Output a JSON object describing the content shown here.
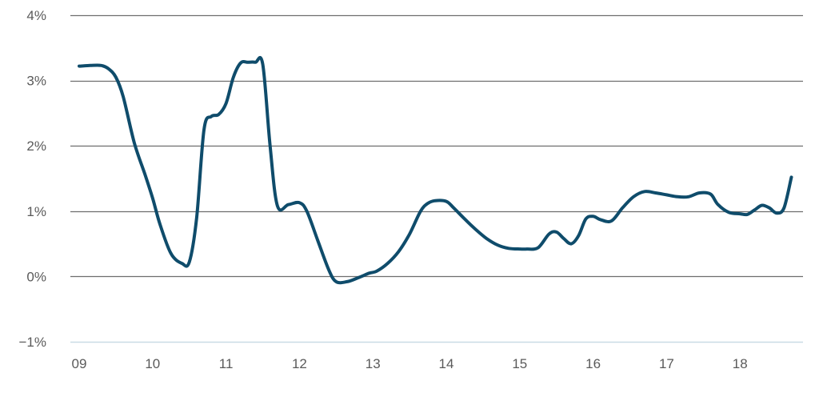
{
  "chart_data": {
    "type": "line",
    "title": "",
    "xlabel": "",
    "ylabel": "",
    "x_ticks": [
      {
        "x": 2009,
        "label": "09"
      },
      {
        "x": 2010,
        "label": "10"
      },
      {
        "x": 2011,
        "label": "11"
      },
      {
        "x": 2012,
        "label": "12"
      },
      {
        "x": 2013,
        "label": "13"
      },
      {
        "x": 2014,
        "label": "14"
      },
      {
        "x": 2015,
        "label": "15"
      },
      {
        "x": 2016,
        "label": "16"
      },
      {
        "x": 2017,
        "label": "17"
      },
      {
        "x": 2018,
        "label": "18"
      }
    ],
    "y_ticks": [
      {
        "y": 4,
        "label": "4%"
      },
      {
        "y": 3,
        "label": "3%"
      },
      {
        "y": 2,
        "label": "2%"
      },
      {
        "y": 1,
        "label": "1%"
      },
      {
        "y": 0,
        "label": "0%"
      },
      {
        "y": -1,
        "label": "−1%"
      }
    ],
    "xlim": [
      2009,
      2019
    ],
    "ylim": [
      -1,
      4
    ],
    "grid": true,
    "colors": {
      "line": "#0f4c6b",
      "grid": "#6e6e6e",
      "zero_axis_bottom": "#c9dbe6"
    },
    "series": [
      {
        "x": [
          2009.0,
          2009.15,
          2009.3,
          2009.4,
          2009.5,
          2009.6,
          2009.75,
          2009.9,
          2010.0,
          2010.1,
          2010.25,
          2010.4,
          2010.5,
          2010.6,
          2010.7,
          2010.8,
          2010.9,
          2011.0,
          2011.1,
          2011.2,
          2011.3,
          2011.4,
          2011.5,
          2011.6,
          2011.7,
          2011.85,
          2012.0,
          2012.1,
          2012.25,
          2012.4,
          2012.5,
          2012.65,
          2012.8,
          2012.95,
          2013.05,
          2013.2,
          2013.35,
          2013.5,
          2013.65,
          2013.75,
          2013.85,
          2014.0,
          2014.1,
          2014.25,
          2014.4,
          2014.55,
          2014.7,
          2014.85,
          2015.0,
          2015.1,
          2015.25,
          2015.4,
          2015.5,
          2015.6,
          2015.7,
          2015.8,
          2015.9,
          2016.0,
          2016.1,
          2016.25,
          2016.4,
          2016.55,
          2016.7,
          2016.85,
          2017.0,
          2017.15,
          2017.3,
          2017.45,
          2017.6,
          2017.7,
          2017.85,
          2018.0,
          2018.1,
          2018.2,
          2018.3,
          2018.4,
          2018.5,
          2018.6,
          2018.7
        ],
        "y": [
          3.22,
          3.23,
          3.23,
          3.18,
          3.05,
          2.75,
          2.05,
          1.55,
          1.2,
          0.8,
          0.35,
          0.2,
          0.22,
          0.9,
          2.25,
          2.45,
          2.48,
          2.65,
          3.05,
          3.27,
          3.28,
          3.28,
          3.25,
          2.0,
          1.08,
          1.1,
          1.13,
          1.0,
          0.55,
          0.1,
          -0.08,
          -0.08,
          -0.02,
          0.05,
          0.08,
          0.2,
          0.38,
          0.65,
          1.0,
          1.12,
          1.16,
          1.15,
          1.05,
          0.88,
          0.72,
          0.58,
          0.48,
          0.43,
          0.42,
          0.42,
          0.44,
          0.65,
          0.68,
          0.58,
          0.5,
          0.62,
          0.88,
          0.92,
          0.87,
          0.85,
          1.05,
          1.22,
          1.3,
          1.28,
          1.25,
          1.22,
          1.22,
          1.28,
          1.26,
          1.1,
          0.98,
          0.96,
          0.95,
          1.02,
          1.09,
          1.05,
          0.97,
          1.05,
          1.52
        ]
      }
    ]
  }
}
